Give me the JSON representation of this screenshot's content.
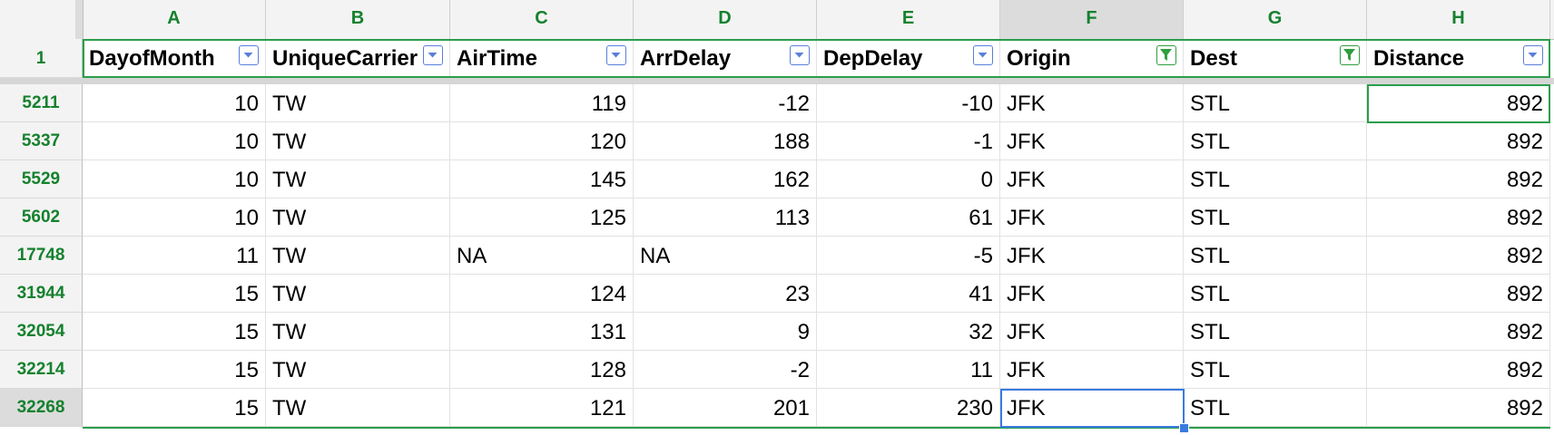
{
  "columns": [
    {
      "letter": "A",
      "header": "DayofMonth",
      "type": "num",
      "filter": "off"
    },
    {
      "letter": "B",
      "header": "UniqueCarrier",
      "type": "text",
      "filter": "off"
    },
    {
      "letter": "C",
      "header": "AirTime",
      "type": "num",
      "filter": "off"
    },
    {
      "letter": "D",
      "header": "ArrDelay",
      "type": "num",
      "filter": "off"
    },
    {
      "letter": "E",
      "header": "DepDelay",
      "type": "num",
      "filter": "off"
    },
    {
      "letter": "F",
      "header": "Origin",
      "type": "text",
      "filter": "on"
    },
    {
      "letter": "G",
      "header": "Dest",
      "type": "text",
      "filter": "on"
    },
    {
      "letter": "H",
      "header": "Distance",
      "type": "num",
      "filter": "off"
    }
  ],
  "header_row_number": "1",
  "rows": [
    {
      "n": "5211",
      "cells": [
        "10",
        "TW",
        "119",
        "-12",
        "-10",
        "JFK",
        "STL",
        "892"
      ]
    },
    {
      "n": "5337",
      "cells": [
        "10",
        "TW",
        "120",
        "188",
        "-1",
        "JFK",
        "STL",
        "892"
      ]
    },
    {
      "n": "5529",
      "cells": [
        "10",
        "TW",
        "145",
        "162",
        "0",
        "JFK",
        "STL",
        "892"
      ]
    },
    {
      "n": "5602",
      "cells": [
        "10",
        "TW",
        "125",
        "113",
        "61",
        "JFK",
        "STL",
        "892"
      ]
    },
    {
      "n": "17748",
      "cells": [
        "11",
        "TW",
        "NA",
        "NA",
        "-5",
        "JFK",
        "STL",
        "892"
      ]
    },
    {
      "n": "31944",
      "cells": [
        "15",
        "TW",
        "124",
        "23",
        "41",
        "JFK",
        "STL",
        "892"
      ]
    },
    {
      "n": "32054",
      "cells": [
        "15",
        "TW",
        "131",
        "9",
        "32",
        "JFK",
        "STL",
        "892"
      ]
    },
    {
      "n": "32214",
      "cells": [
        "15",
        "TW",
        "128",
        "-2",
        "11",
        "JFK",
        "STL",
        "892"
      ]
    },
    {
      "n": "32268",
      "cells": [
        "15",
        "TW",
        "121",
        "201",
        "230",
        "JFK",
        "STL",
        "892"
      ]
    }
  ],
  "active_column": "F",
  "active_row": "32268",
  "colors": {
    "header_green": "#15812d",
    "selection_blue": "#3b7be0",
    "frame_green": "#2a9e4b",
    "filter_blue": "#5a7fd9"
  },
  "icons": {
    "filter_off": "dropdown-arrow-icon",
    "filter_on": "funnel-filter-icon"
  }
}
